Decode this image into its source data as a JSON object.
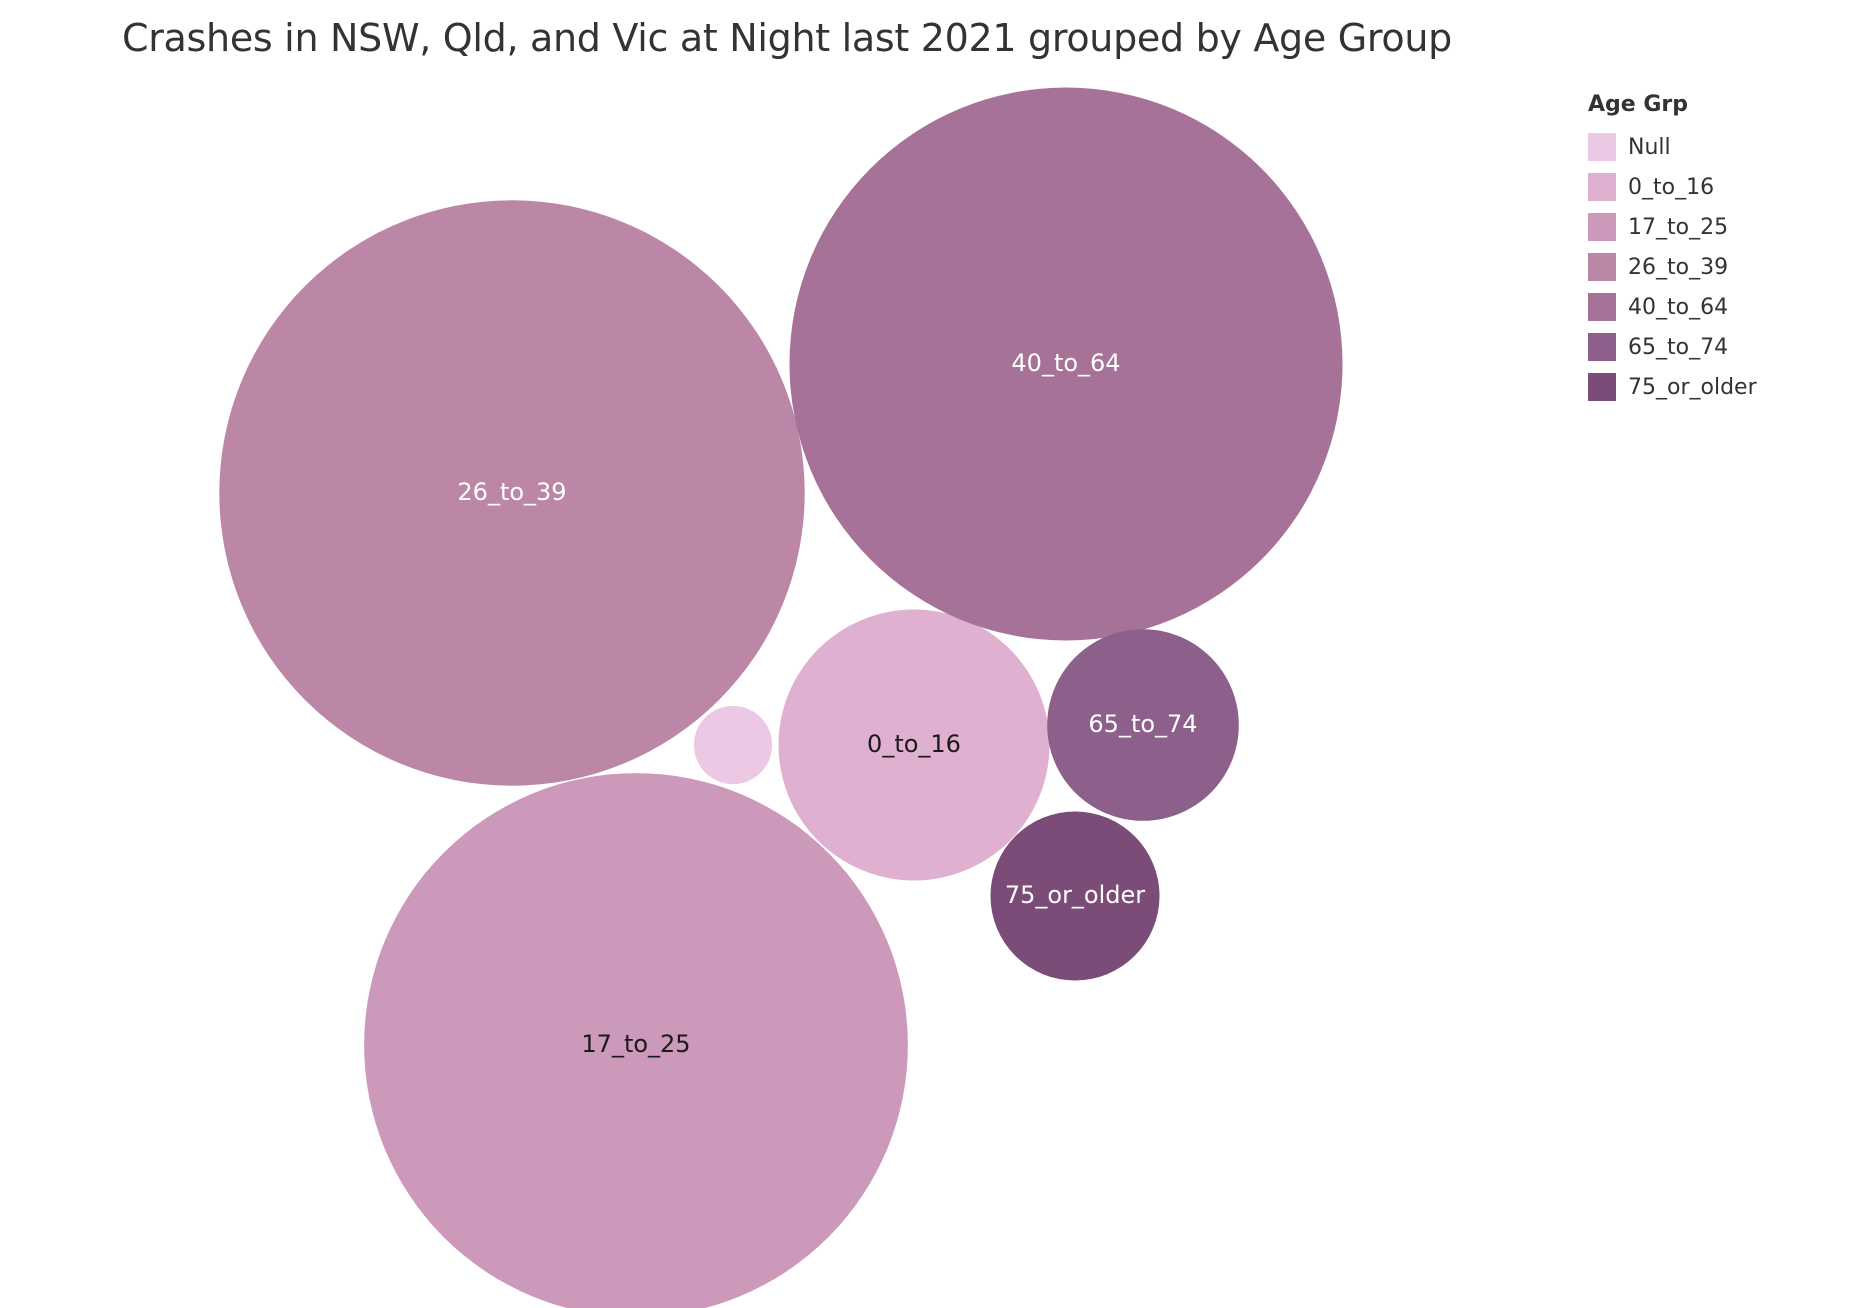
{
  "chart_data": {
    "type": "bubble",
    "title": "Crashes in NSW, Qld, and Vic at Night last 2021 grouped by Age Group",
    "legend": {
      "title": "Age Grp",
      "placement": "top-right"
    },
    "bubbles": [
      {
        "label": "Null",
        "value": 3,
        "color": "#ebc8e3",
        "show_label": false,
        "label_color": "#000000"
      },
      {
        "label": "0_to_16",
        "value": 36,
        "color": "#dfb0d0",
        "show_label": true,
        "label_color": "#1a1a1a"
      },
      {
        "label": "17_to_25",
        "value": 145,
        "color": "#cd99ba",
        "show_label": true,
        "label_color": "#1a1a1a"
      },
      {
        "label": "26_to_39",
        "value": 168,
        "color": "#bc86a7",
        "show_label": true,
        "label_color": "#ffffff"
      },
      {
        "label": "40_to_64",
        "value": 150,
        "color": "#a67298",
        "show_label": true,
        "label_color": "#ffffff"
      },
      {
        "label": "65_to_74",
        "value": 18,
        "color": "#8d5f8b",
        "show_label": true,
        "label_color": "#ffffff"
      },
      {
        "label": "75_or_older",
        "value": 14,
        "color": "#7b4c77",
        "show_label": true,
        "label_color": "#ffffff"
      }
    ]
  }
}
